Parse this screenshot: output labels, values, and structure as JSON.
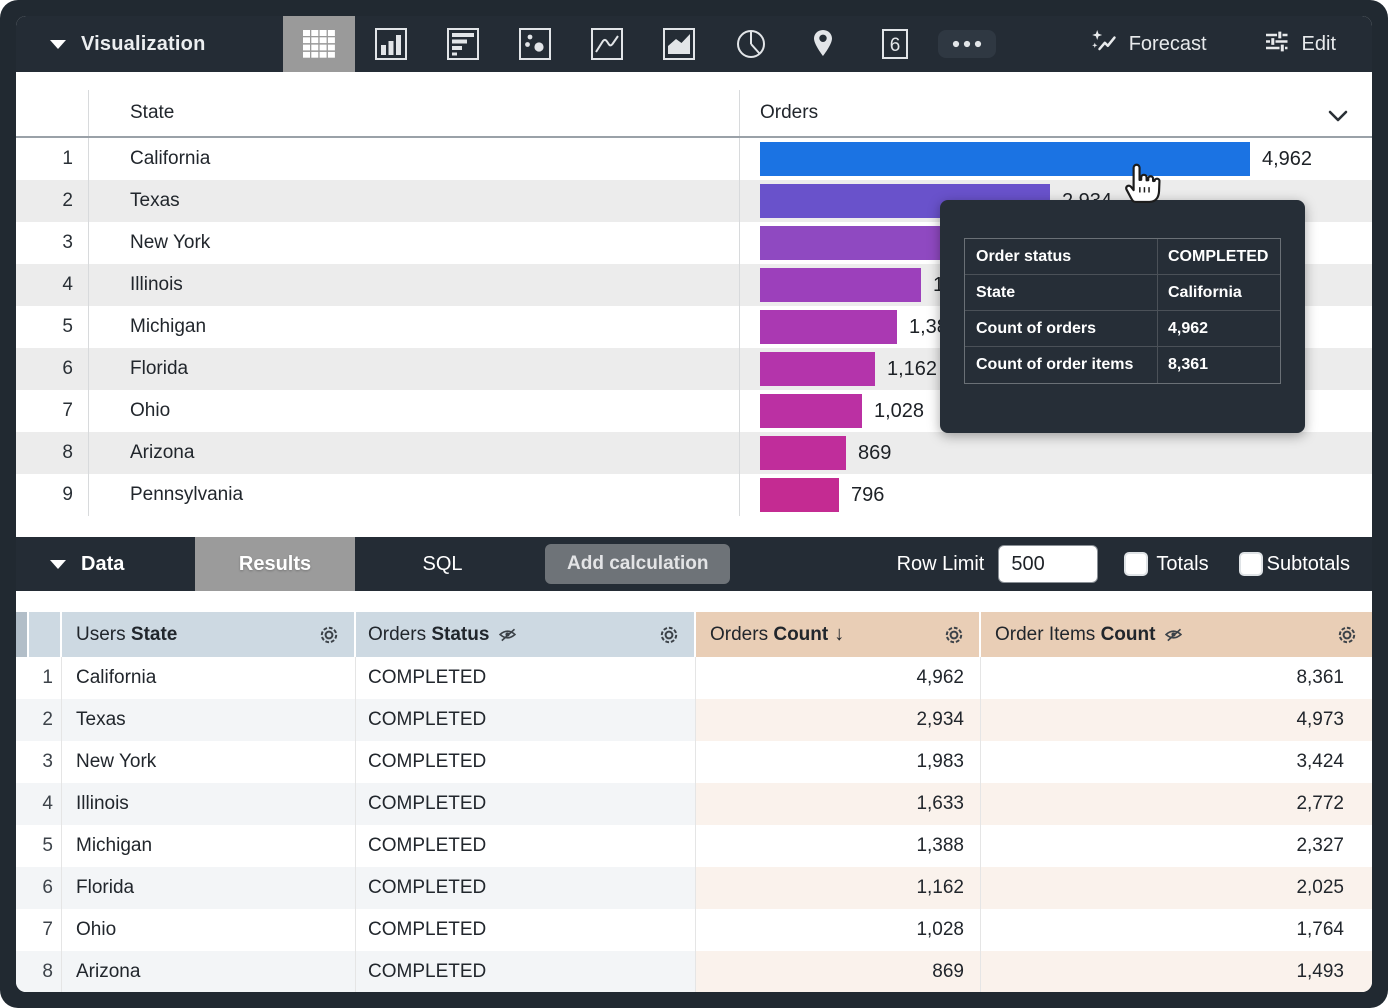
{
  "viz_toolbar": {
    "label": "Visualization",
    "types": [
      {
        "name": "table-chart-icon",
        "selected": true
      },
      {
        "name": "column-chart-icon",
        "selected": false
      },
      {
        "name": "bar-chart-icon",
        "selected": false
      },
      {
        "name": "scatter-chart-icon",
        "selected": false
      },
      {
        "name": "line-chart-icon",
        "selected": false
      },
      {
        "name": "area-chart-icon",
        "selected": false
      },
      {
        "name": "pie-chart-icon",
        "selected": false
      },
      {
        "name": "map-chart-icon",
        "selected": false
      },
      {
        "name": "single-value-icon",
        "selected": false
      },
      {
        "name": "more-icon",
        "selected": false
      }
    ],
    "forecast_label": "Forecast",
    "edit_label": "Edit"
  },
  "viz_table": {
    "state_header": "State",
    "orders_header": "Orders",
    "max_value": 4962,
    "rows": [
      {
        "rank": "1",
        "state": "California",
        "value": 4962,
        "label": "4,962",
        "color": "#1b73e3"
      },
      {
        "rank": "2",
        "state": "Texas",
        "value": 2934,
        "label": "2,934",
        "color": "#6952cb"
      },
      {
        "rank": "3",
        "state": "New York",
        "value": 1983,
        "label": "1,983",
        "color": "#8f49c1"
      },
      {
        "rank": "4",
        "state": "Illinois",
        "value": 1633,
        "label": "1,633",
        "color": "#9c40bb"
      },
      {
        "rank": "5",
        "state": "Michigan",
        "value": 1388,
        "label": "1,388",
        "color": "#aa39b2"
      },
      {
        "rank": "6",
        "state": "Florida",
        "value": 1162,
        "label": "1,162",
        "color": "#b434ab"
      },
      {
        "rank": "7",
        "state": "Ohio",
        "value": 1028,
        "label": "1,028",
        "color": "#bb30a3"
      },
      {
        "rank": "8",
        "state": "Arizona",
        "value": 869,
        "label": "869",
        "color": "#c02d9b"
      },
      {
        "rank": "9",
        "state": "Pennsylvania",
        "value": 796,
        "label": "796",
        "color": "#c42b92"
      }
    ]
  },
  "tooltip": {
    "rows": [
      {
        "label": "Order status",
        "value": "COMPLETED"
      },
      {
        "label": "State",
        "value": "California"
      },
      {
        "label": "Count of orders",
        "value": "4,962"
      },
      {
        "label": "Count of order items",
        "value": "8,361"
      }
    ]
  },
  "data_bar": {
    "label": "Data",
    "results_tab": "Results",
    "sql_tab": "SQL",
    "add_calculation": "Add calculation",
    "row_limit_label": "Row Limit",
    "row_limit_value": "500",
    "totals_label": "Totals",
    "subtotals_label": "Subtotals"
  },
  "data_table": {
    "headers": [
      {
        "prefix": "Users ",
        "bold": "State",
        "type": "dimension",
        "hidden_from_viz": false,
        "sorted": false
      },
      {
        "prefix": "Orders ",
        "bold": "Status",
        "type": "dimension",
        "hidden_from_viz": true,
        "sorted": false
      },
      {
        "prefix": "Orders ",
        "bold": "Count",
        "type": "measure",
        "hidden_from_viz": false,
        "sorted": true,
        "sort_arrow": "↓"
      },
      {
        "prefix": "Order Items ",
        "bold": "Count",
        "type": "measure",
        "hidden_from_viz": true,
        "sorted": false
      }
    ],
    "rows": [
      {
        "num": "1",
        "state": "California",
        "status": "COMPLETED",
        "orders": "4,962",
        "items": "8,361"
      },
      {
        "num": "2",
        "state": "Texas",
        "status": "COMPLETED",
        "orders": "2,934",
        "items": "4,973"
      },
      {
        "num": "3",
        "state": "New York",
        "status": "COMPLETED",
        "orders": "1,983",
        "items": "3,424"
      },
      {
        "num": "4",
        "state": "Illinois",
        "status": "COMPLETED",
        "orders": "1,633",
        "items": "2,772"
      },
      {
        "num": "5",
        "state": "Michigan",
        "status": "COMPLETED",
        "orders": "1,388",
        "items": "2,327"
      },
      {
        "num": "6",
        "state": "Florida",
        "status": "COMPLETED",
        "orders": "1,162",
        "items": "2,025"
      },
      {
        "num": "7",
        "state": "Ohio",
        "status": "COMPLETED",
        "orders": "1,028",
        "items": "1,764"
      },
      {
        "num": "8",
        "state": "Arizona",
        "status": "COMPLETED",
        "orders": "869",
        "items": "1,493"
      }
    ]
  },
  "colors": {
    "toolbar_bg": "#242c35",
    "selected_viz_tab_bg": "#9a9a9a",
    "results_tab_bg": "#9b9b9b",
    "dimension_header_bg": "#cdd9e2",
    "measure_header_bg": "#e9ceb6",
    "alt_row_gray": "#ececec",
    "alt_dimension_row": "#f3f5f7",
    "alt_measure_row": "#faf2ec",
    "top_bar_blue": "#1b73e3"
  }
}
